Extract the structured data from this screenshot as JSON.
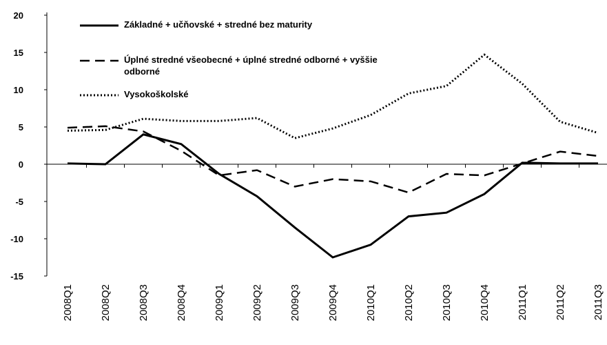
{
  "chart_data": {
    "type": "line",
    "categories": [
      "2008Q1",
      "2008Q2",
      "2008Q3",
      "2008Q4",
      "2009Q1",
      "2009Q2",
      "2009Q3",
      "2009Q4",
      "2010Q1",
      "2010Q2",
      "2010Q3",
      "2010Q4",
      "2011Q1",
      "2011Q2",
      "2011Q3"
    ],
    "series": [
      {
        "name": "Základné + učňovské + stredné bez maturity",
        "color": "#000000",
        "dash": "solid",
        "values": [
          0.1,
          0.0,
          4.0,
          2.7,
          -1.3,
          -4.3,
          -8.5,
          -12.5,
          -10.8,
          -7.0,
          -6.5,
          -4.0,
          0.2,
          0.1,
          0.1
        ]
      },
      {
        "name": "Úplné stredné všeobecné + úplné stredné odborné + vyššie odborné",
        "color": "#000000",
        "dash": "dashed",
        "values": [
          4.9,
          5.1,
          4.4,
          1.8,
          -1.5,
          -0.8,
          -3.0,
          -2.0,
          -2.3,
          -3.8,
          -1.3,
          -1.5,
          0.1,
          1.7,
          1.1
        ]
      },
      {
        "name": "Vysokoškolské",
        "color": "#000000",
        "dash": "dotted",
        "values": [
          4.5,
          4.6,
          6.1,
          5.8,
          5.8,
          6.2,
          3.5,
          4.8,
          6.6,
          9.5,
          10.5,
          14.7,
          10.8,
          5.7,
          4.2
        ]
      }
    ],
    "ylim": [
      -15,
      20
    ],
    "yticks": [
      -15,
      -10,
      -5,
      0,
      5,
      10,
      15,
      20
    ],
    "grid": false,
    "legend": "top-left"
  }
}
